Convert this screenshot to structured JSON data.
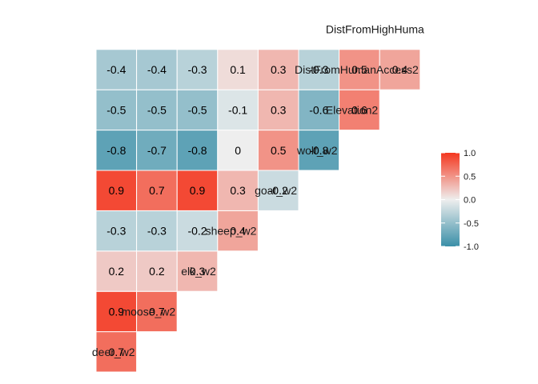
{
  "chart_data": {
    "type": "heatmap",
    "title": "",
    "xlabel": "",
    "ylabel": "",
    "variables": [
      "deer_w2",
      "moose_w2",
      "elk_w2",
      "sheep_w2",
      "goat_w2",
      "wolf_w2",
      "Elevation2",
      "DistFromHumanAccess2",
      "DistFromHighHuma"
    ],
    "cells": [
      {
        "row": "moose_w2",
        "col": "deer_w2",
        "value": 0.7,
        "label": "0.7"
      },
      {
        "row": "elk_w2",
        "col": "deer_w2",
        "value": 0.9,
        "label": "0.9"
      },
      {
        "row": "elk_w2",
        "col": "moose_w2",
        "value": 0.7,
        "label": "0.7"
      },
      {
        "row": "sheep_w2",
        "col": "deer_w2",
        "value": 0.2,
        "label": "0.2"
      },
      {
        "row": "sheep_w2",
        "col": "moose_w2",
        "value": 0.2,
        "label": "0.2"
      },
      {
        "row": "sheep_w2",
        "col": "elk_w2",
        "value": 0.3,
        "label": "0.3"
      },
      {
        "row": "goat_w2",
        "col": "deer_w2",
        "value": -0.3,
        "label": "-0.3"
      },
      {
        "row": "goat_w2",
        "col": "moose_w2",
        "value": -0.3,
        "label": "-0.3"
      },
      {
        "row": "goat_w2",
        "col": "elk_w2",
        "value": -0.2,
        "label": "-0.2"
      },
      {
        "row": "goat_w2",
        "col": "sheep_w2",
        "value": 0.4,
        "label": "0.4"
      },
      {
        "row": "wolf_w2",
        "col": "deer_w2",
        "value": 0.9,
        "label": "0.9"
      },
      {
        "row": "wolf_w2",
        "col": "moose_w2",
        "value": 0.7,
        "label": "0.7"
      },
      {
        "row": "wolf_w2",
        "col": "elk_w2",
        "value": 0.9,
        "label": "0.9"
      },
      {
        "row": "wolf_w2",
        "col": "sheep_w2",
        "value": 0.3,
        "label": "0.3"
      },
      {
        "row": "wolf_w2",
        "col": "goat_w2",
        "value": -0.2,
        "label": "-0.2"
      },
      {
        "row": "Elevation2",
        "col": "deer_w2",
        "value": -0.8,
        "label": "-0.8"
      },
      {
        "row": "Elevation2",
        "col": "moose_w2",
        "value": -0.7,
        "label": "-0.7"
      },
      {
        "row": "Elevation2",
        "col": "elk_w2",
        "value": -0.8,
        "label": "-0.8"
      },
      {
        "row": "Elevation2",
        "col": "sheep_w2",
        "value": 0.0,
        "label": "0"
      },
      {
        "row": "Elevation2",
        "col": "goat_w2",
        "value": 0.5,
        "label": "0.5"
      },
      {
        "row": "Elevation2",
        "col": "wolf_w2",
        "value": -0.8,
        "label": "-0.8"
      },
      {
        "row": "DistFromHumanAccess2",
        "col": "deer_w2",
        "value": -0.5,
        "label": "-0.5"
      },
      {
        "row": "DistFromHumanAccess2",
        "col": "moose_w2",
        "value": -0.5,
        "label": "-0.5"
      },
      {
        "row": "DistFromHumanAccess2",
        "col": "elk_w2",
        "value": -0.5,
        "label": "-0.5"
      },
      {
        "row": "DistFromHumanAccess2",
        "col": "sheep_w2",
        "value": -0.1,
        "label": "-0.1"
      },
      {
        "row": "DistFromHumanAccess2",
        "col": "goat_w2",
        "value": 0.3,
        "label": "0.3"
      },
      {
        "row": "DistFromHumanAccess2",
        "col": "wolf_w2",
        "value": -0.6,
        "label": "-0.6"
      },
      {
        "row": "DistFromHumanAccess2",
        "col": "Elevation2",
        "value": 0.6,
        "label": "0.6"
      },
      {
        "row": "DistFromHighHuma",
        "col": "deer_w2",
        "value": -0.4,
        "label": "-0.4"
      },
      {
        "row": "DistFromHighHuma",
        "col": "moose_w2",
        "value": -0.4,
        "label": "-0.4"
      },
      {
        "row": "DistFromHighHuma",
        "col": "elk_w2",
        "value": -0.3,
        "label": "-0.3"
      },
      {
        "row": "DistFromHighHuma",
        "col": "sheep_w2",
        "value": 0.1,
        "label": "0.1"
      },
      {
        "row": "DistFromHighHuma",
        "col": "goat_w2",
        "value": 0.3,
        "label": "0.3"
      },
      {
        "row": "DistFromHighHuma",
        "col": "wolf_w2",
        "value": -0.3,
        "label": "-0.3"
      },
      {
        "row": "DistFromHighHuma",
        "col": "Elevation2",
        "value": 0.5,
        "label": "0.5"
      },
      {
        "row": "DistFromHighHuma",
        "col": "DistFromHumanAccess2",
        "value": 0.4,
        "label": "0.4"
      }
    ],
    "color_scale": {
      "limits": [
        -1,
        1
      ],
      "low": "#3a8fa8",
      "mid": "#eeeeee",
      "high": "#f4371f",
      "ticks": [
        "1.0",
        "0.5",
        "0.0",
        "-0.5",
        "-1.0"
      ],
      "tick_values": [
        1.0,
        0.5,
        0.0,
        -0.5,
        -1.0
      ]
    },
    "legend_position": "right",
    "grid": false
  }
}
